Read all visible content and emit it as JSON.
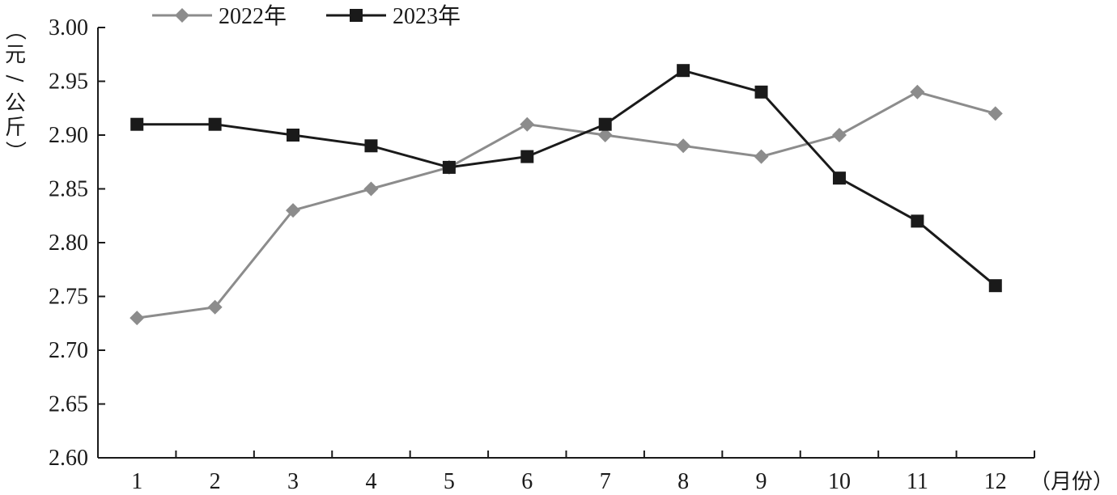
{
  "chart_data": {
    "type": "line",
    "title": "",
    "xlabel": "（月份）",
    "ylabel": "（元/公斤）",
    "categories": [
      "1",
      "2",
      "3",
      "4",
      "5",
      "6",
      "7",
      "8",
      "9",
      "10",
      "11",
      "12"
    ],
    "ylim": [
      2.6,
      3.0
    ],
    "ytick_labels": [
      "2.60",
      "2.65",
      "2.70",
      "2.75",
      "2.80",
      "2.85",
      "2.90",
      "2.95",
      "3.00"
    ],
    "ytick_values": [
      2.6,
      2.65,
      2.7,
      2.75,
      2.8,
      2.85,
      2.9,
      2.95,
      3.0
    ],
    "grid": false,
    "legend_position": "top-left",
    "series": [
      {
        "name": "2022年",
        "color": "#8c8c8c",
        "marker": "diamond",
        "values": [
          2.73,
          2.74,
          2.83,
          2.85,
          2.87,
          2.91,
          2.9,
          2.89,
          2.88,
          2.9,
          2.94,
          2.92
        ]
      },
      {
        "name": "2023年",
        "color": "#1a1a1a",
        "marker": "square",
        "values": [
          2.91,
          2.91,
          2.9,
          2.89,
          2.87,
          2.88,
          2.91,
          2.96,
          2.94,
          2.86,
          2.82,
          2.76
        ]
      }
    ]
  }
}
